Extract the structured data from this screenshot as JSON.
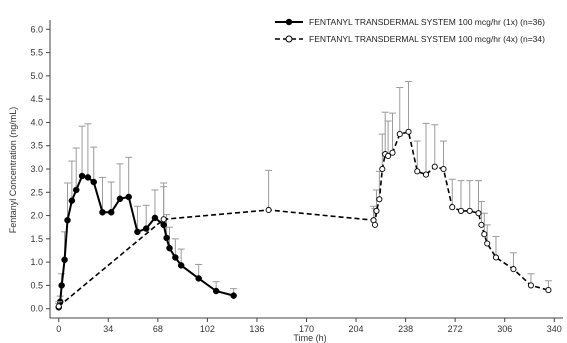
{
  "chart_data": {
    "type": "line",
    "title": "",
    "xlabel": "Time (h)",
    "ylabel": "Fentanyl Concentration (ng/mL)",
    "xlim": [
      -6,
      346
    ],
    "ylim": [
      -0.2,
      6.2
    ],
    "x_ticks": [
      0,
      34,
      68,
      102,
      136,
      170,
      204,
      238,
      272,
      306,
      340
    ],
    "x_tick_labels": [
      "0",
      "34",
      "68",
      "102",
      "136",
      "170",
      "204",
      "238",
      "272",
      "306",
      "340"
    ],
    "y_ticks": [
      0.0,
      0.5,
      1.0,
      1.5,
      2.0,
      2.5,
      3.0,
      3.5,
      4.0,
      4.5,
      5.0,
      5.5,
      6.0
    ],
    "y_tick_labels": [
      "0.0",
      "0.5",
      "1.0",
      "1.5",
      "2.0",
      "2.5",
      "3.0",
      "3.5",
      "4.0",
      "4.5",
      "5.0",
      "5.5",
      "6.0"
    ],
    "grid": false,
    "legend_position": "top-right",
    "series": [
      {
        "name": "FENTANYL TRANSDERMAL SYSTEM 100 mcg/hr (1x) (n=36)",
        "line_style": "solid",
        "marker": "filled-circle",
        "color": "#000000",
        "points": [
          {
            "x": 0,
            "y": 0.03,
            "err": 0.08
          },
          {
            "x": 1,
            "y": 0.15,
            "err": 0.12
          },
          {
            "x": 2,
            "y": 0.5,
            "err": 0.25
          },
          {
            "x": 4,
            "y": 1.05,
            "err": 0.6
          },
          {
            "x": 6,
            "y": 1.9,
            "err": 0.8
          },
          {
            "x": 9,
            "y": 2.32,
            "err": 0.85
          },
          {
            "x": 12,
            "y": 2.55,
            "err": 0.9
          },
          {
            "x": 16,
            "y": 2.85,
            "err": 1.07
          },
          {
            "x": 20,
            "y": 2.82,
            "err": 1.15
          },
          {
            "x": 24,
            "y": 2.72,
            "err": 0.75
          },
          {
            "x": 30,
            "y": 2.07,
            "err": 0.75
          },
          {
            "x": 36,
            "y": 2.07,
            "err": 0.65
          },
          {
            "x": 42,
            "y": 2.36,
            "err": 0.75
          },
          {
            "x": 48,
            "y": 2.4,
            "err": 0.85
          },
          {
            "x": 54,
            "y": 1.65,
            "err": 0.55
          },
          {
            "x": 60,
            "y": 1.72,
            "err": 0.5
          },
          {
            "x": 66,
            "y": 1.95,
            "err": 0.6
          },
          {
            "x": 72,
            "y": 1.8,
            "err": 0.9
          },
          {
            "x": 74,
            "y": 1.52,
            "err": 0.5
          },
          {
            "x": 76,
            "y": 1.3,
            "err": 0.45
          },
          {
            "x": 80,
            "y": 1.1,
            "err": 0.4
          },
          {
            "x": 84,
            "y": 0.93,
            "err": 0.35
          },
          {
            "x": 96,
            "y": 0.65,
            "err": 0.3
          },
          {
            "x": 108,
            "y": 0.38,
            "err": 0.2
          },
          {
            "x": 120,
            "y": 0.28,
            "err": 0.15
          }
        ]
      },
      {
        "name": "FENTANYL TRANSDERMAL SYSTEM 100 mcg/hr (4x) (n=34)",
        "line_style": "dashed",
        "marker": "open-circle",
        "color": "#000000",
        "points": [
          {
            "x": 0,
            "y": 0.05,
            "err": 0.1
          },
          {
            "x": 72,
            "y": 1.92,
            "err": 0.7
          },
          {
            "x": 144,
            "y": 2.12,
            "err": 0.85
          },
          {
            "x": 216,
            "y": 1.9,
            "err": 0.3
          },
          {
            "x": 217,
            "y": 1.8,
            "err": 0.35
          },
          {
            "x": 218,
            "y": 2.1,
            "err": 0.45
          },
          {
            "x": 220,
            "y": 2.35,
            "err": 0.6
          },
          {
            "x": 222,
            "y": 3.0,
            "err": 0.75
          },
          {
            "x": 224,
            "y": 3.32,
            "err": 0.9
          },
          {
            "x": 226,
            "y": 3.28,
            "err": 0.75
          },
          {
            "x": 229,
            "y": 3.35,
            "err": 0.85
          },
          {
            "x": 234,
            "y": 3.75,
            "err": 1.0
          },
          {
            "x": 240,
            "y": 3.8,
            "err": 1.08
          },
          {
            "x": 246,
            "y": 2.95,
            "err": 0.65
          },
          {
            "x": 252,
            "y": 2.88,
            "err": 1.1
          },
          {
            "x": 258,
            "y": 3.05,
            "err": 0.9
          },
          {
            "x": 264,
            "y": 3.0,
            "err": 0.6
          },
          {
            "x": 270,
            "y": 2.18,
            "err": 0.6
          },
          {
            "x": 276,
            "y": 2.1,
            "err": 0.65
          },
          {
            "x": 282,
            "y": 2.1,
            "err": 0.65
          },
          {
            "x": 288,
            "y": 2.05,
            "err": 0.7
          },
          {
            "x": 290,
            "y": 1.8,
            "err": 0.5
          },
          {
            "x": 292,
            "y": 1.6,
            "err": 0.45
          },
          {
            "x": 294,
            "y": 1.4,
            "err": 0.4
          },
          {
            "x": 300,
            "y": 1.1,
            "err": 0.45
          },
          {
            "x": 312,
            "y": 0.85,
            "err": 0.35
          },
          {
            "x": 324,
            "y": 0.5,
            "err": 0.25
          },
          {
            "x": 336,
            "y": 0.4,
            "err": 0.2
          }
        ]
      }
    ]
  }
}
